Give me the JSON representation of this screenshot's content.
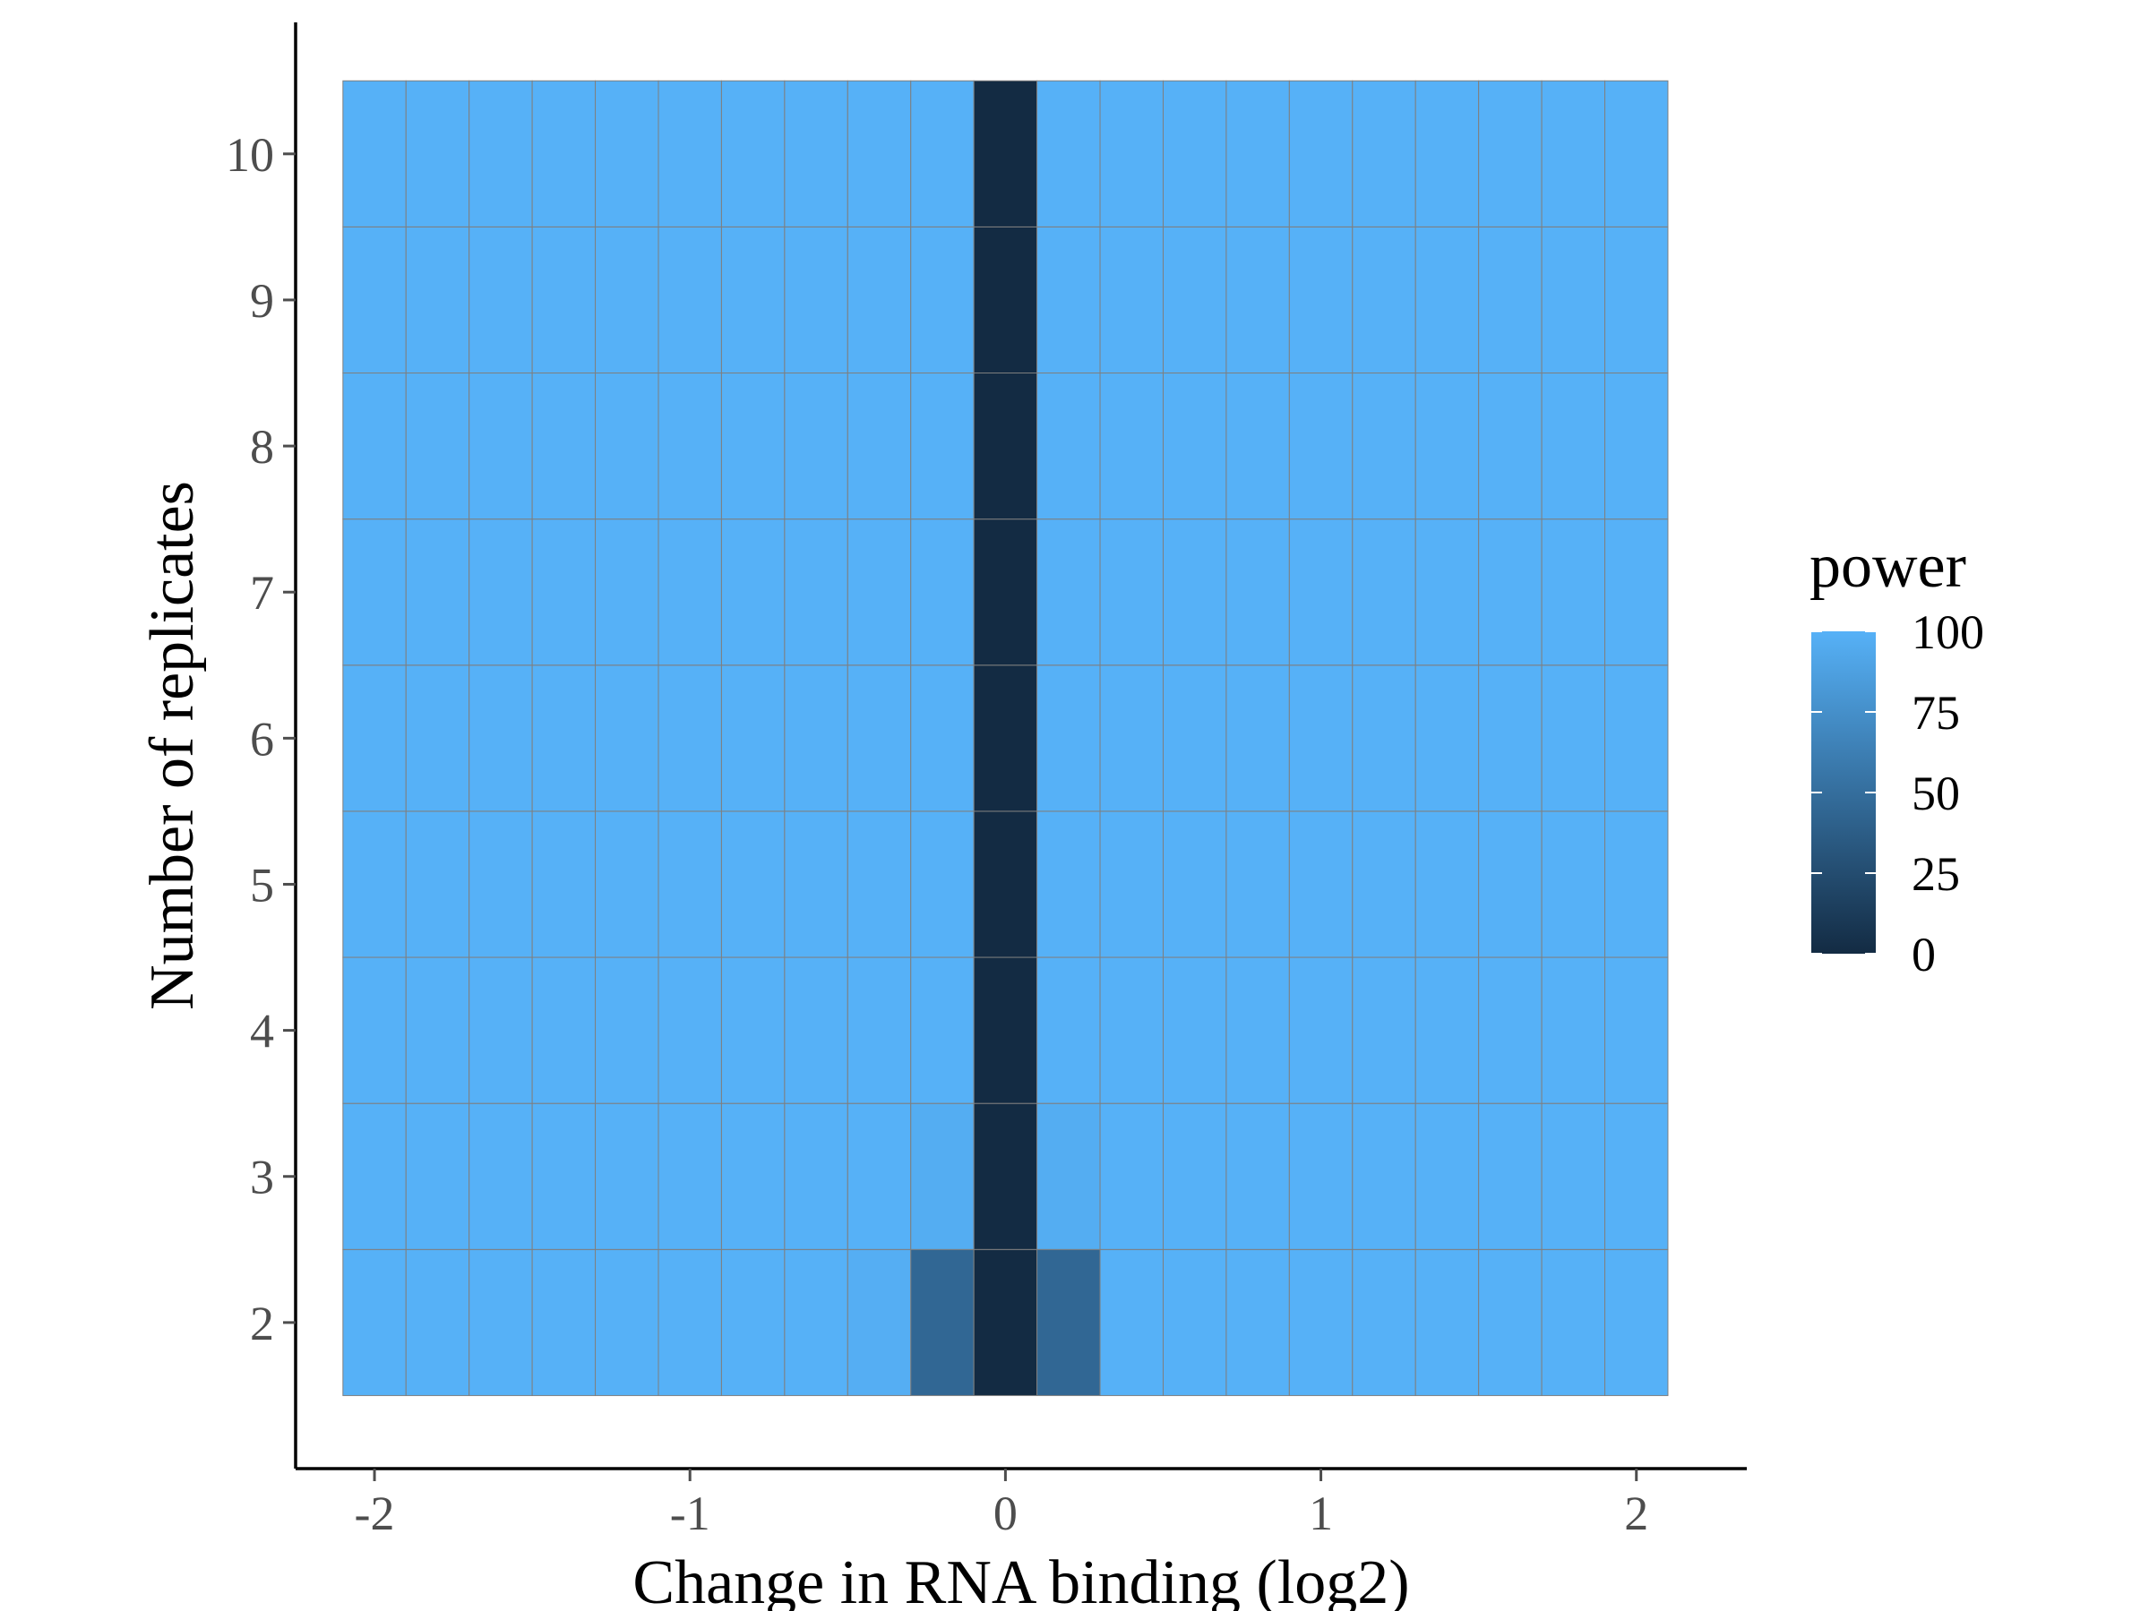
{
  "chart_data": {
    "type": "heatmap",
    "title": "",
    "xlabel": "Change in RNA binding (log2)",
    "ylabel": "Number of replicates",
    "x": [
      -2.0,
      -1.8,
      -1.6,
      -1.4,
      -1.2,
      -1.0,
      -0.8,
      -0.6,
      -0.4,
      -0.2,
      0.0,
      0.2,
      0.4,
      0.6,
      0.8,
      1.0,
      1.2,
      1.4,
      1.6,
      1.8,
      2.0
    ],
    "y": [
      2,
      3,
      4,
      5,
      6,
      7,
      8,
      9,
      10
    ],
    "xlim": [
      -2.25,
      2.35
    ],
    "ylim": [
      1,
      10.9
    ],
    "x_ticks": [
      {
        "value": -2,
        "label": "-2"
      },
      {
        "value": -1,
        "label": "-1"
      },
      {
        "value": 0,
        "label": "0"
      },
      {
        "value": 1,
        "label": "1"
      },
      {
        "value": 2,
        "label": "2"
      }
    ],
    "y_ticks": [
      {
        "value": 2,
        "label": "2"
      },
      {
        "value": 3,
        "label": "3"
      },
      {
        "value": 4,
        "label": "4"
      },
      {
        "value": 5,
        "label": "5"
      },
      {
        "value": 6,
        "label": "6"
      },
      {
        "value": 7,
        "label": "7"
      },
      {
        "value": 8,
        "label": "8"
      },
      {
        "value": 9,
        "label": "9"
      },
      {
        "value": 10,
        "label": "10"
      }
    ],
    "power": [
      [
        100,
        100,
        100,
        100,
        100,
        100,
        100,
        100,
        98,
        45,
        0,
        45,
        100,
        100,
        100,
        100,
        100,
        100,
        100,
        100,
        100
      ],
      [
        100,
        100,
        100,
        100,
        100,
        100,
        100,
        100,
        100,
        97,
        0,
        97,
        100,
        100,
        100,
        100,
        100,
        100,
        100,
        100,
        100
      ],
      [
        100,
        100,
        100,
        100,
        100,
        100,
        100,
        100,
        100,
        100,
        0,
        100,
        100,
        100,
        100,
        100,
        100,
        100,
        100,
        100,
        100
      ],
      [
        100,
        100,
        100,
        100,
        100,
        100,
        100,
        100,
        100,
        100,
        0,
        100,
        100,
        100,
        100,
        100,
        100,
        100,
        100,
        100,
        100
      ],
      [
        100,
        100,
        100,
        100,
        100,
        100,
        100,
        100,
        100,
        100,
        0,
        100,
        100,
        100,
        100,
        100,
        100,
        100,
        100,
        100,
        100
      ],
      [
        100,
        100,
        100,
        100,
        100,
        100,
        100,
        100,
        100,
        100,
        0,
        100,
        100,
        100,
        100,
        100,
        100,
        100,
        100,
        100,
        100
      ],
      [
        100,
        100,
        100,
        100,
        100,
        100,
        100,
        100,
        100,
        100,
        0,
        100,
        100,
        100,
        100,
        100,
        100,
        100,
        100,
        100,
        100
      ],
      [
        100,
        100,
        100,
        100,
        100,
        100,
        100,
        100,
        100,
        100,
        0,
        100,
        100,
        100,
        100,
        100,
        100,
        100,
        100,
        100,
        100
      ],
      [
        100,
        100,
        100,
        100,
        100,
        100,
        100,
        100,
        100,
        100,
        0,
        100,
        100,
        100,
        100,
        100,
        100,
        100,
        100,
        100,
        100
      ]
    ],
    "legend": {
      "title": "power",
      "position": "right",
      "range": [
        0,
        100
      ],
      "breaks": [
        0,
        25,
        50,
        75,
        100
      ],
      "labels": [
        "0",
        "25",
        "50",
        "75",
        "100"
      ]
    },
    "colors": {
      "low": "#132b43",
      "high": "#56b1f7",
      "tile_border": "#7f7f7f",
      "axis": "#000000",
      "tick_label": "#4d4d4d",
      "background": "#ffffff"
    },
    "grid": false
  }
}
